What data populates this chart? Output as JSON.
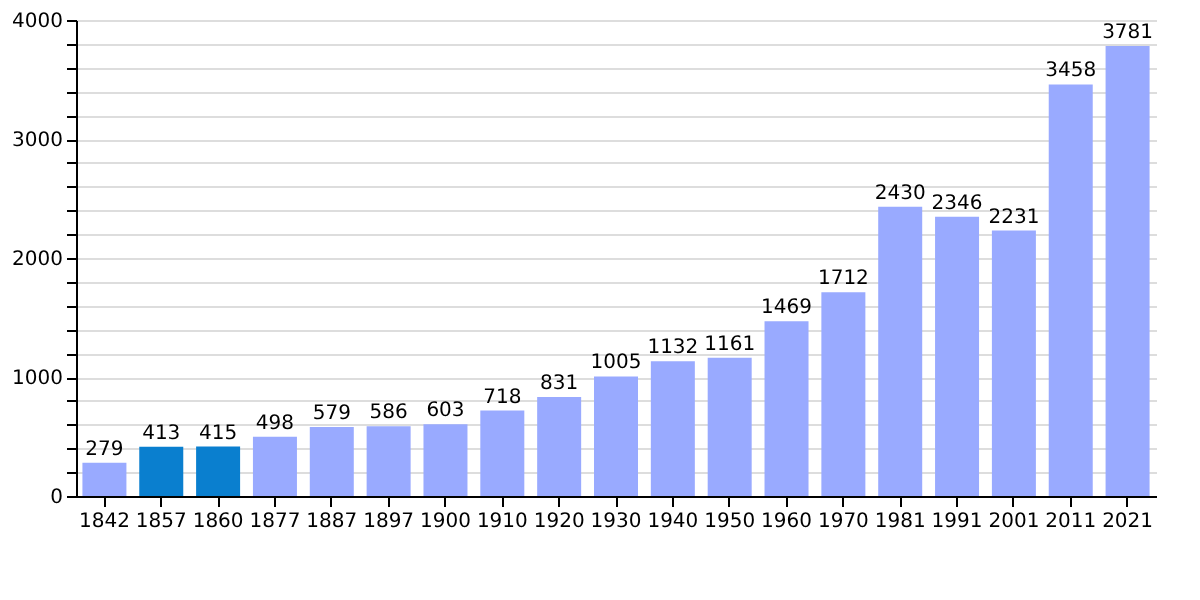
{
  "chart_data": {
    "type": "bar",
    "categories": [
      "1842",
      "1857",
      "1860",
      "1877",
      "1887",
      "1897",
      "1900",
      "1910",
      "1920",
      "1930",
      "1940",
      "1950",
      "1960",
      "1970",
      "1981",
      "1991",
      "2001",
      "2011",
      "2021"
    ],
    "values": [
      279,
      413,
      415,
      498,
      579,
      586,
      603,
      718,
      831,
      1005,
      1132,
      1161,
      1469,
      1712,
      2430,
      2346,
      2231,
      3458,
      3781
    ],
    "colors": [
      "#99aaff",
      "#0a7fcf",
      "#0a7fcf",
      "#99aaff",
      "#99aaff",
      "#99aaff",
      "#99aaff",
      "#99aaff",
      "#99aaff",
      "#99aaff",
      "#99aaff",
      "#99aaff",
      "#99aaff",
      "#99aaff",
      "#99aaff",
      "#99aaff",
      "#99aaff",
      "#99aaff",
      "#99aaff"
    ],
    "ylim": [
      0,
      4000
    ],
    "yticks": [
      0,
      {
        "value": 200,
        "label": null
      },
      {
        "value": 400,
        "label": null
      },
      {
        "value": 600,
        "label": null
      },
      {
        "value": 800,
        "label": null
      },
      1000,
      {
        "value": 1200,
        "label": null
      },
      {
        "value": 1400,
        "label": null
      },
      {
        "value": 1600,
        "label": null
      },
      {
        "value": 1800,
        "label": null
      },
      2000,
      {
        "value": 2200,
        "label": null
      },
      {
        "value": 2400,
        "label": null
      },
      {
        "value": 2600,
        "label": null
      },
      {
        "value": 2800,
        "label": null
      },
      3000,
      {
        "value": 3200,
        "label": null
      },
      {
        "value": 3400,
        "label": null
      },
      {
        "value": 3600,
        "label": null
      },
      {
        "value": 3800,
        "label": null
      },
      4000
    ],
    "grid": "y",
    "data_labels": true
  }
}
